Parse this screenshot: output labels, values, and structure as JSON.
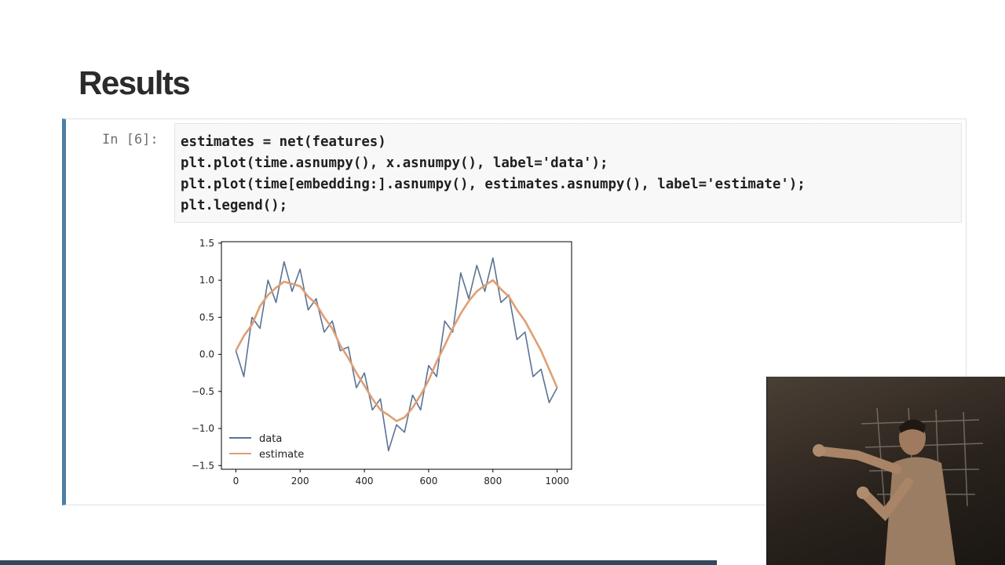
{
  "slide": {
    "title": "Results"
  },
  "cell": {
    "prompt": "In [6]:",
    "code_lines": [
      "estimates = net(features)",
      "plt.plot(time.asnumpy(), x.asnumpy(), label='data');",
      "plt.plot(time[embedding:].asnumpy(), estimates.asnumpy(), label='estimate');",
      "plt.legend();"
    ]
  },
  "colors": {
    "data": "#5b7393",
    "estimate": "#df9f74",
    "cell_border": "#4a7fa8"
  },
  "chart_data": {
    "type": "line",
    "title": "",
    "xlabel": "",
    "ylabel": "",
    "xlim": [
      -45,
      1045
    ],
    "ylim": [
      -1.55,
      1.52
    ],
    "xticks": [
      0,
      200,
      400,
      600,
      800,
      1000
    ],
    "xtick_labels": [
      "0",
      "200",
      "400",
      "600",
      "800",
      "1000"
    ],
    "yticks": [
      1.5,
      1.0,
      0.5,
      0.0,
      -0.5,
      -1.0,
      -1.5
    ],
    "ytick_labels": [
      "1.5",
      "1.0",
      "0.5",
      "0.0",
      "−0.5",
      "−1.0",
      "−1.5"
    ],
    "grid": false,
    "legend": {
      "position": "lower-left",
      "entries": [
        "data",
        "estimate"
      ]
    },
    "series": [
      {
        "name": "data",
        "x": [
          0,
          25,
          50,
          75,
          100,
          125,
          150,
          175,
          200,
          225,
          250,
          275,
          300,
          325,
          350,
          375,
          400,
          425,
          450,
          475,
          500,
          525,
          550,
          575,
          600,
          625,
          650,
          675,
          700,
          725,
          750,
          775,
          800,
          825,
          850,
          875,
          900,
          925,
          950,
          975,
          1000
        ],
        "y": [
          0.05,
          -0.3,
          0.5,
          0.35,
          1.0,
          0.7,
          1.25,
          0.85,
          1.15,
          0.6,
          0.75,
          0.3,
          0.45,
          0.05,
          0.1,
          -0.45,
          -0.25,
          -0.75,
          -0.6,
          -1.3,
          -0.95,
          -1.05,
          -0.55,
          -0.75,
          -0.15,
          -0.3,
          0.45,
          0.3,
          1.1,
          0.75,
          1.2,
          0.85,
          1.3,
          0.7,
          0.8,
          0.2,
          0.3,
          -0.3,
          -0.2,
          -0.65,
          -0.45
        ]
      },
      {
        "name": "estimate",
        "x": [
          0,
          25,
          50,
          75,
          100,
          125,
          150,
          175,
          200,
          225,
          250,
          275,
          300,
          325,
          350,
          375,
          400,
          425,
          450,
          475,
          500,
          525,
          550,
          575,
          600,
          625,
          650,
          675,
          700,
          725,
          750,
          775,
          800,
          825,
          850,
          875,
          900,
          925,
          950,
          975,
          1000
        ],
        "y": [
          0.05,
          0.25,
          0.4,
          0.65,
          0.8,
          0.9,
          0.98,
          0.95,
          0.92,
          0.78,
          0.68,
          0.5,
          0.35,
          0.12,
          -0.05,
          -0.25,
          -0.42,
          -0.6,
          -0.75,
          -0.82,
          -0.9,
          -0.85,
          -0.72,
          -0.55,
          -0.35,
          -0.1,
          0.12,
          0.35,
          0.55,
          0.72,
          0.85,
          0.93,
          1.0,
          0.88,
          0.78,
          0.6,
          0.45,
          0.25,
          0.05,
          -0.2,
          -0.45
        ]
      }
    ]
  }
}
